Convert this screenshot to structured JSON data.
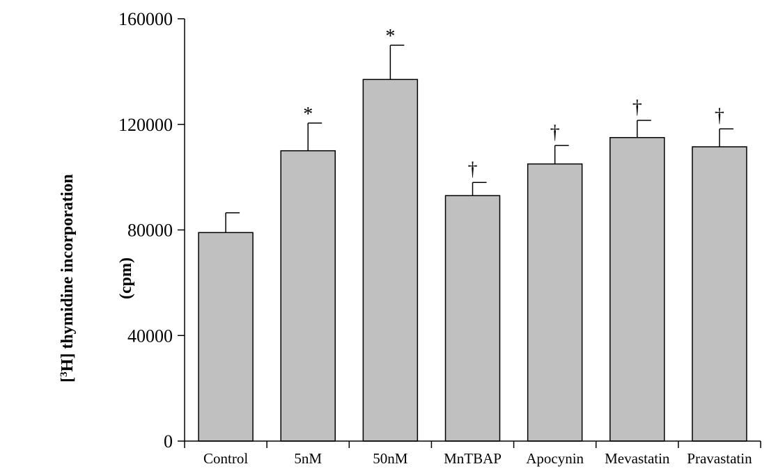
{
  "chart_data": {
    "type": "bar",
    "categories": [
      "Control",
      "5nM",
      "50nM",
      "MnTBAP",
      "Apocynin",
      "Mevastatin",
      "Pravastatin"
    ],
    "values": [
      79000,
      110000,
      137000,
      93000,
      105000,
      115000,
      111500
    ],
    "errors": [
      7500,
      10500,
      13000,
      5000,
      7000,
      6500,
      6800
    ],
    "significance": [
      "",
      "*",
      "*",
      "†",
      "†",
      "†",
      "†"
    ],
    "ylabel": {
      "bracket_open": "[",
      "superscript": "3",
      "after_sup": "H] thymidine incorporation",
      "line2": "(cpm)"
    },
    "ylim": [
      0,
      160000
    ],
    "yticks": [
      0,
      40000,
      80000,
      120000,
      160000
    ],
    "bar_color": "#c0c0c0",
    "grid": false
  }
}
